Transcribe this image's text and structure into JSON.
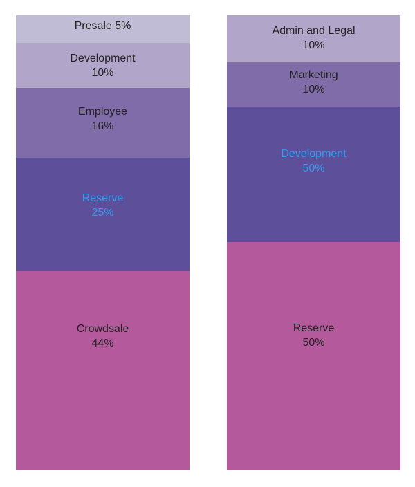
{
  "chart_data": [
    {
      "type": "stacked-bar",
      "series": [
        {
          "label": "Presale",
          "value": 5,
          "value_label": "5%",
          "color": "#c1bcd6",
          "text_color": "#222222",
          "single_line": true
        },
        {
          "label": "Development",
          "value": 10,
          "value_label": "10%",
          "color": "#b1a6c9",
          "text_color": "#222222"
        },
        {
          "label": "Employee",
          "value": 16,
          "value_label": "16%",
          "color": "#7f6ca8",
          "text_color": "#222222"
        },
        {
          "label": "Reserve",
          "value": 25,
          "value_label": "25%",
          "color": "#5e4f9b",
          "text_color": "#2f9df0"
        },
        {
          "label": "Crowdsale",
          "value": 44,
          "value_label": "44%",
          "color": "#b45a9c",
          "text_color": "#222222"
        }
      ]
    },
    {
      "type": "stacked-bar",
      "series": [
        {
          "label": "Admin and Legal",
          "value": 10,
          "value_label": "10%",
          "color": "#b1a6c9",
          "text_color": "#222222"
        },
        {
          "label": "Marketing",
          "value": 10,
          "value_label": "10%",
          "color": "#7f6ca8",
          "text_color": "#222222"
        },
        {
          "label": "Development",
          "value": 50,
          "value_label": "50%",
          "color": "#5e4f9b",
          "text_color": "#2f9df0"
        },
        {
          "label": "Reserve",
          "value": 50,
          "value_label": "50%",
          "color": "#b45a9c",
          "text_color": "#222222"
        }
      ]
    }
  ]
}
